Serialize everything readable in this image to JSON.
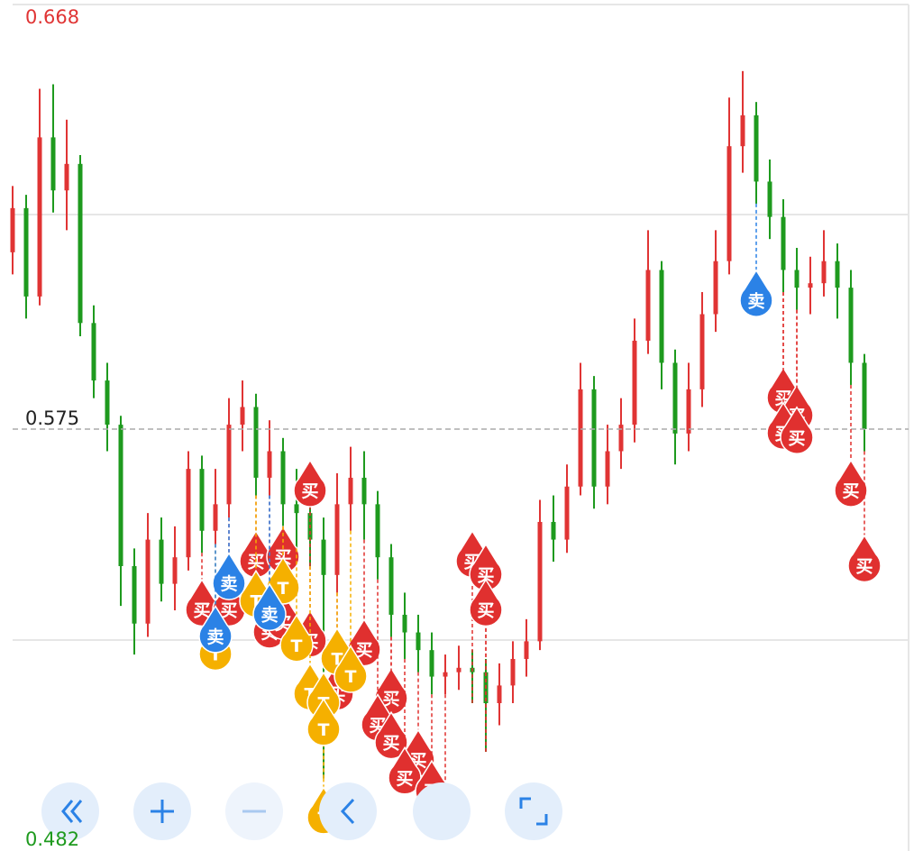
{
  "chart_data": {
    "type": "candlestick",
    "ylim": [
      0.482,
      0.668
    ],
    "yticks": [
      0.668,
      0.482
    ],
    "last_price": 0.575,
    "up_color": "#e03434",
    "down_color": "#1e9a1e",
    "ohlc": [
      [
        0.615,
        0.63,
        0.61,
        0.625
      ],
      [
        0.625,
        0.628,
        0.6,
        0.605
      ],
      [
        0.605,
        0.652,
        0.603,
        0.641
      ],
      [
        0.641,
        0.653,
        0.624,
        0.629
      ],
      [
        0.629,
        0.645,
        0.62,
        0.635
      ],
      [
        0.635,
        0.637,
        0.596,
        0.599
      ],
      [
        0.599,
        0.603,
        0.582,
        0.586
      ],
      [
        0.586,
        0.59,
        0.57,
        0.576
      ],
      [
        0.576,
        0.578,
        0.535,
        0.544
      ],
      [
        0.544,
        0.548,
        0.524,
        0.531
      ],
      [
        0.531,
        0.556,
        0.528,
        0.55
      ],
      [
        0.55,
        0.555,
        0.536,
        0.54
      ],
      [
        0.54,
        0.553,
        0.534,
        0.546
      ],
      [
        0.546,
        0.57,
        0.543,
        0.566
      ],
      [
        0.566,
        0.569,
        0.547,
        0.552
      ],
      [
        0.552,
        0.566,
        0.549,
        0.558
      ],
      [
        0.558,
        0.582,
        0.555,
        0.576
      ],
      [
        0.576,
        0.586,
        0.57,
        0.58
      ],
      [
        0.58,
        0.583,
        0.56,
        0.564
      ],
      [
        0.564,
        0.577,
        0.56,
        0.57
      ],
      [
        0.57,
        0.573,
        0.553,
        0.558
      ],
      [
        0.558,
        0.566,
        0.548,
        0.556
      ],
      [
        0.556,
        0.56,
        0.544,
        0.55
      ],
      [
        0.55,
        0.555,
        0.496,
        0.542
      ],
      [
        0.542,
        0.565,
        0.538,
        0.558
      ],
      [
        0.558,
        0.571,
        0.552,
        0.564
      ],
      [
        0.564,
        0.57,
        0.55,
        0.558
      ],
      [
        0.558,
        0.561,
        0.541,
        0.546
      ],
      [
        0.546,
        0.549,
        0.528,
        0.533
      ],
      [
        0.533,
        0.538,
        0.523,
        0.529
      ],
      [
        0.529,
        0.533,
        0.52,
        0.525
      ],
      [
        0.525,
        0.529,
        0.515,
        0.519
      ],
      [
        0.519,
        0.524,
        0.515,
        0.52
      ],
      [
        0.52,
        0.526,
        0.516,
        0.521
      ],
      [
        0.521,
        0.525,
        0.513,
        0.52
      ],
      [
        0.52,
        0.523,
        0.502,
        0.513
      ],
      [
        0.513,
        0.522,
        0.508,
        0.517
      ],
      [
        0.517,
        0.527,
        0.513,
        0.523
      ],
      [
        0.523,
        0.532,
        0.519,
        0.527
      ],
      [
        0.527,
        0.559,
        0.525,
        0.554
      ],
      [
        0.554,
        0.56,
        0.545,
        0.55
      ],
      [
        0.55,
        0.567,
        0.547,
        0.562
      ],
      [
        0.562,
        0.59,
        0.56,
        0.584
      ],
      [
        0.584,
        0.587,
        0.557,
        0.562
      ],
      [
        0.562,
        0.576,
        0.558,
        0.57
      ],
      [
        0.57,
        0.582,
        0.566,
        0.576
      ],
      [
        0.576,
        0.6,
        0.572,
        0.595
      ],
      [
        0.595,
        0.62,
        0.592,
        0.611
      ],
      [
        0.611,
        0.613,
        0.584,
        0.59
      ],
      [
        0.59,
        0.593,
        0.567,
        0.574
      ],
      [
        0.574,
        0.59,
        0.57,
        0.584
      ],
      [
        0.584,
        0.606,
        0.58,
        0.601
      ],
      [
        0.601,
        0.62,
        0.597,
        0.613
      ],
      [
        0.613,
        0.65,
        0.61,
        0.639
      ],
      [
        0.639,
        0.656,
        0.633,
        0.646
      ],
      [
        0.646,
        0.649,
        0.626,
        0.631
      ],
      [
        0.631,
        0.636,
        0.618,
        0.623
      ],
      [
        0.623,
        0.627,
        0.606,
        0.611
      ],
      [
        0.611,
        0.616,
        0.602,
        0.607
      ],
      [
        0.607,
        0.614,
        0.601,
        0.608
      ],
      [
        0.608,
        0.62,
        0.605,
        0.613
      ],
      [
        0.613,
        0.617,
        0.6,
        0.607
      ],
      [
        0.607,
        0.611,
        0.585,
        0.59
      ],
      [
        0.59,
        0.592,
        0.57,
        0.575
      ]
    ],
    "markers": [
      {
        "index": 55,
        "price": 0.604,
        "label": "卖",
        "color": "#2b82e6"
      },
      {
        "index": 57,
        "price": 0.582,
        "label": "买",
        "color": "#e0302f"
      },
      {
        "index": 58,
        "price": 0.578,
        "label": "买",
        "color": "#e0302f"
      },
      {
        "index": 57,
        "price": 0.574,
        "label": "买",
        "color": "#e0302f"
      },
      {
        "index": 58,
        "price": 0.573,
        "label": "买",
        "color": "#e0302f"
      },
      {
        "index": 62,
        "price": 0.561,
        "label": "买",
        "color": "#e0302f"
      },
      {
        "index": 63,
        "price": 0.544,
        "label": "买",
        "color": "#e0302f"
      },
      {
        "index": 22,
        "price": 0.561,
        "label": "买",
        "color": "#e0302f"
      },
      {
        "index": 34,
        "price": 0.545,
        "label": "买",
        "color": "#e0302f"
      },
      {
        "index": 35,
        "price": 0.542,
        "label": "买",
        "color": "#e0302f"
      },
      {
        "index": 35,
        "price": 0.534,
        "label": "买",
        "color": "#e0302f"
      },
      {
        "index": 26,
        "price": 0.525,
        "label": "买",
        "color": "#e0302f"
      },
      {
        "index": 28,
        "price": 0.514,
        "label": "买",
        "color": "#e0302f"
      },
      {
        "index": 27,
        "price": 0.508,
        "label": "买",
        "color": "#e0302f"
      },
      {
        "index": 28,
        "price": 0.504,
        "label": "买",
        "color": "#e0302f"
      },
      {
        "index": 30,
        "price": 0.5,
        "label": "买",
        "color": "#e0302f"
      },
      {
        "index": 29,
        "price": 0.496,
        "label": "买",
        "color": "#e0302f"
      },
      {
        "index": 31,
        "price": 0.493,
        "label": "买",
        "color": "#e0302f"
      },
      {
        "index": 32,
        "price": 0.488,
        "label": "买",
        "color": "#e0302f"
      },
      {
        "index": 14,
        "price": 0.534,
        "label": "买",
        "color": "#e0302f"
      },
      {
        "index": 16,
        "price": 0.534,
        "label": "买",
        "color": "#e0302f"
      },
      {
        "index": 18,
        "price": 0.545,
        "label": "买",
        "color": "#e0302f"
      },
      {
        "index": 20,
        "price": 0.546,
        "label": "买",
        "color": "#e0302f"
      },
      {
        "index": 19,
        "price": 0.529,
        "label": "买",
        "color": "#e0302f"
      },
      {
        "index": 20,
        "price": 0.531,
        "label": "买",
        "color": "#e0302f"
      },
      {
        "index": 22,
        "price": 0.527,
        "label": "买",
        "color": "#e0302f"
      },
      {
        "index": 24,
        "price": 0.515,
        "label": "买",
        "color": "#e0302f"
      },
      {
        "index": 15,
        "price": 0.524,
        "label": "T",
        "color": "#f5b000"
      },
      {
        "index": 18,
        "price": 0.536,
        "label": "T",
        "color": "#f5b000"
      },
      {
        "index": 20,
        "price": 0.539,
        "label": "T",
        "color": "#f5b000"
      },
      {
        "index": 21,
        "price": 0.526,
        "label": "T",
        "color": "#f5b000"
      },
      {
        "index": 24,
        "price": 0.523,
        "label": "T",
        "color": "#f5b000"
      },
      {
        "index": 25,
        "price": 0.519,
        "label": "T",
        "color": "#f5b000"
      },
      {
        "index": 22,
        "price": 0.515,
        "label": "T",
        "color": "#f5b000"
      },
      {
        "index": 23,
        "price": 0.513,
        "label": "T",
        "color": "#f5b000"
      },
      {
        "index": 23,
        "price": 0.507,
        "label": "T",
        "color": "#f5b000"
      },
      {
        "index": 23,
        "price": 0.487,
        "label": "T",
        "color": "#f5b000"
      },
      {
        "index": 16,
        "price": 0.54,
        "label": "卖",
        "color": "#2b82e6"
      },
      {
        "index": 19,
        "price": 0.533,
        "label": "卖",
        "color": "#2b82e6"
      },
      {
        "index": 15,
        "price": 0.528,
        "label": "卖",
        "color": "#2b82e6"
      }
    ]
  }
}
